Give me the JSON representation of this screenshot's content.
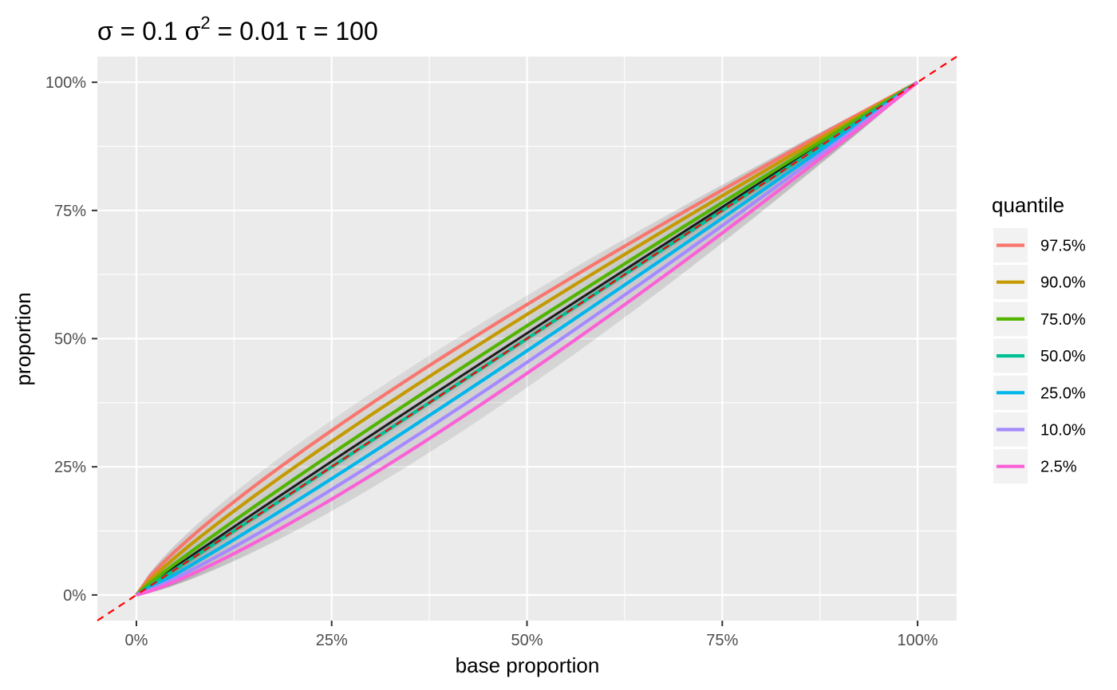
{
  "chart_data": {
    "type": "line",
    "title": {
      "part1": "σ = 0.1  σ",
      "sup": "2",
      "part2": " = 0.01  τ = 100"
    },
    "xlabel": "base proportion",
    "ylabel": "proportion",
    "xlim": [
      -0.05,
      1.05
    ],
    "ylim": [
      -0.05,
      1.05
    ],
    "x_ticks": [
      0,
      0.25,
      0.5,
      0.75,
      1.0
    ],
    "x_tick_labels": [
      "0%",
      "25%",
      "50%",
      "75%",
      "100%"
    ],
    "y_ticks": [
      0,
      0.25,
      0.5,
      0.75,
      1.0
    ],
    "y_tick_labels": [
      "0%",
      "25%",
      "50%",
      "75%",
      "100%"
    ],
    "grid": true,
    "background": "#ebebeb",
    "reference_line": {
      "slope": 1,
      "intercept": 0,
      "color": "#ff0000",
      "style": "dashed"
    },
    "legend": {
      "title": "quantile",
      "position": "right"
    },
    "series": [
      {
        "name": "97.5%",
        "color": "#f8766d",
        "exponent": 0.82
      },
      {
        "name": "90.0%",
        "color": "#c49a00",
        "exponent": 0.87
      },
      {
        "name": "75.0%",
        "color": "#53b400",
        "exponent": 0.93
      },
      {
        "name": "50.0%",
        "color": "#00c094",
        "exponent": 1.0
      },
      {
        "name": "25.0%",
        "color": "#00b6eb",
        "exponent": 1.07
      },
      {
        "name": "10.0%",
        "color": "#a58aff",
        "exponent": 1.14
      },
      {
        "name": "2.5%",
        "color": "#fb61d7",
        "exponent": 1.21
      }
    ],
    "background_draws": {
      "color": "#000000",
      "exponent_range": [
        0.78,
        1.3
      ]
    }
  }
}
